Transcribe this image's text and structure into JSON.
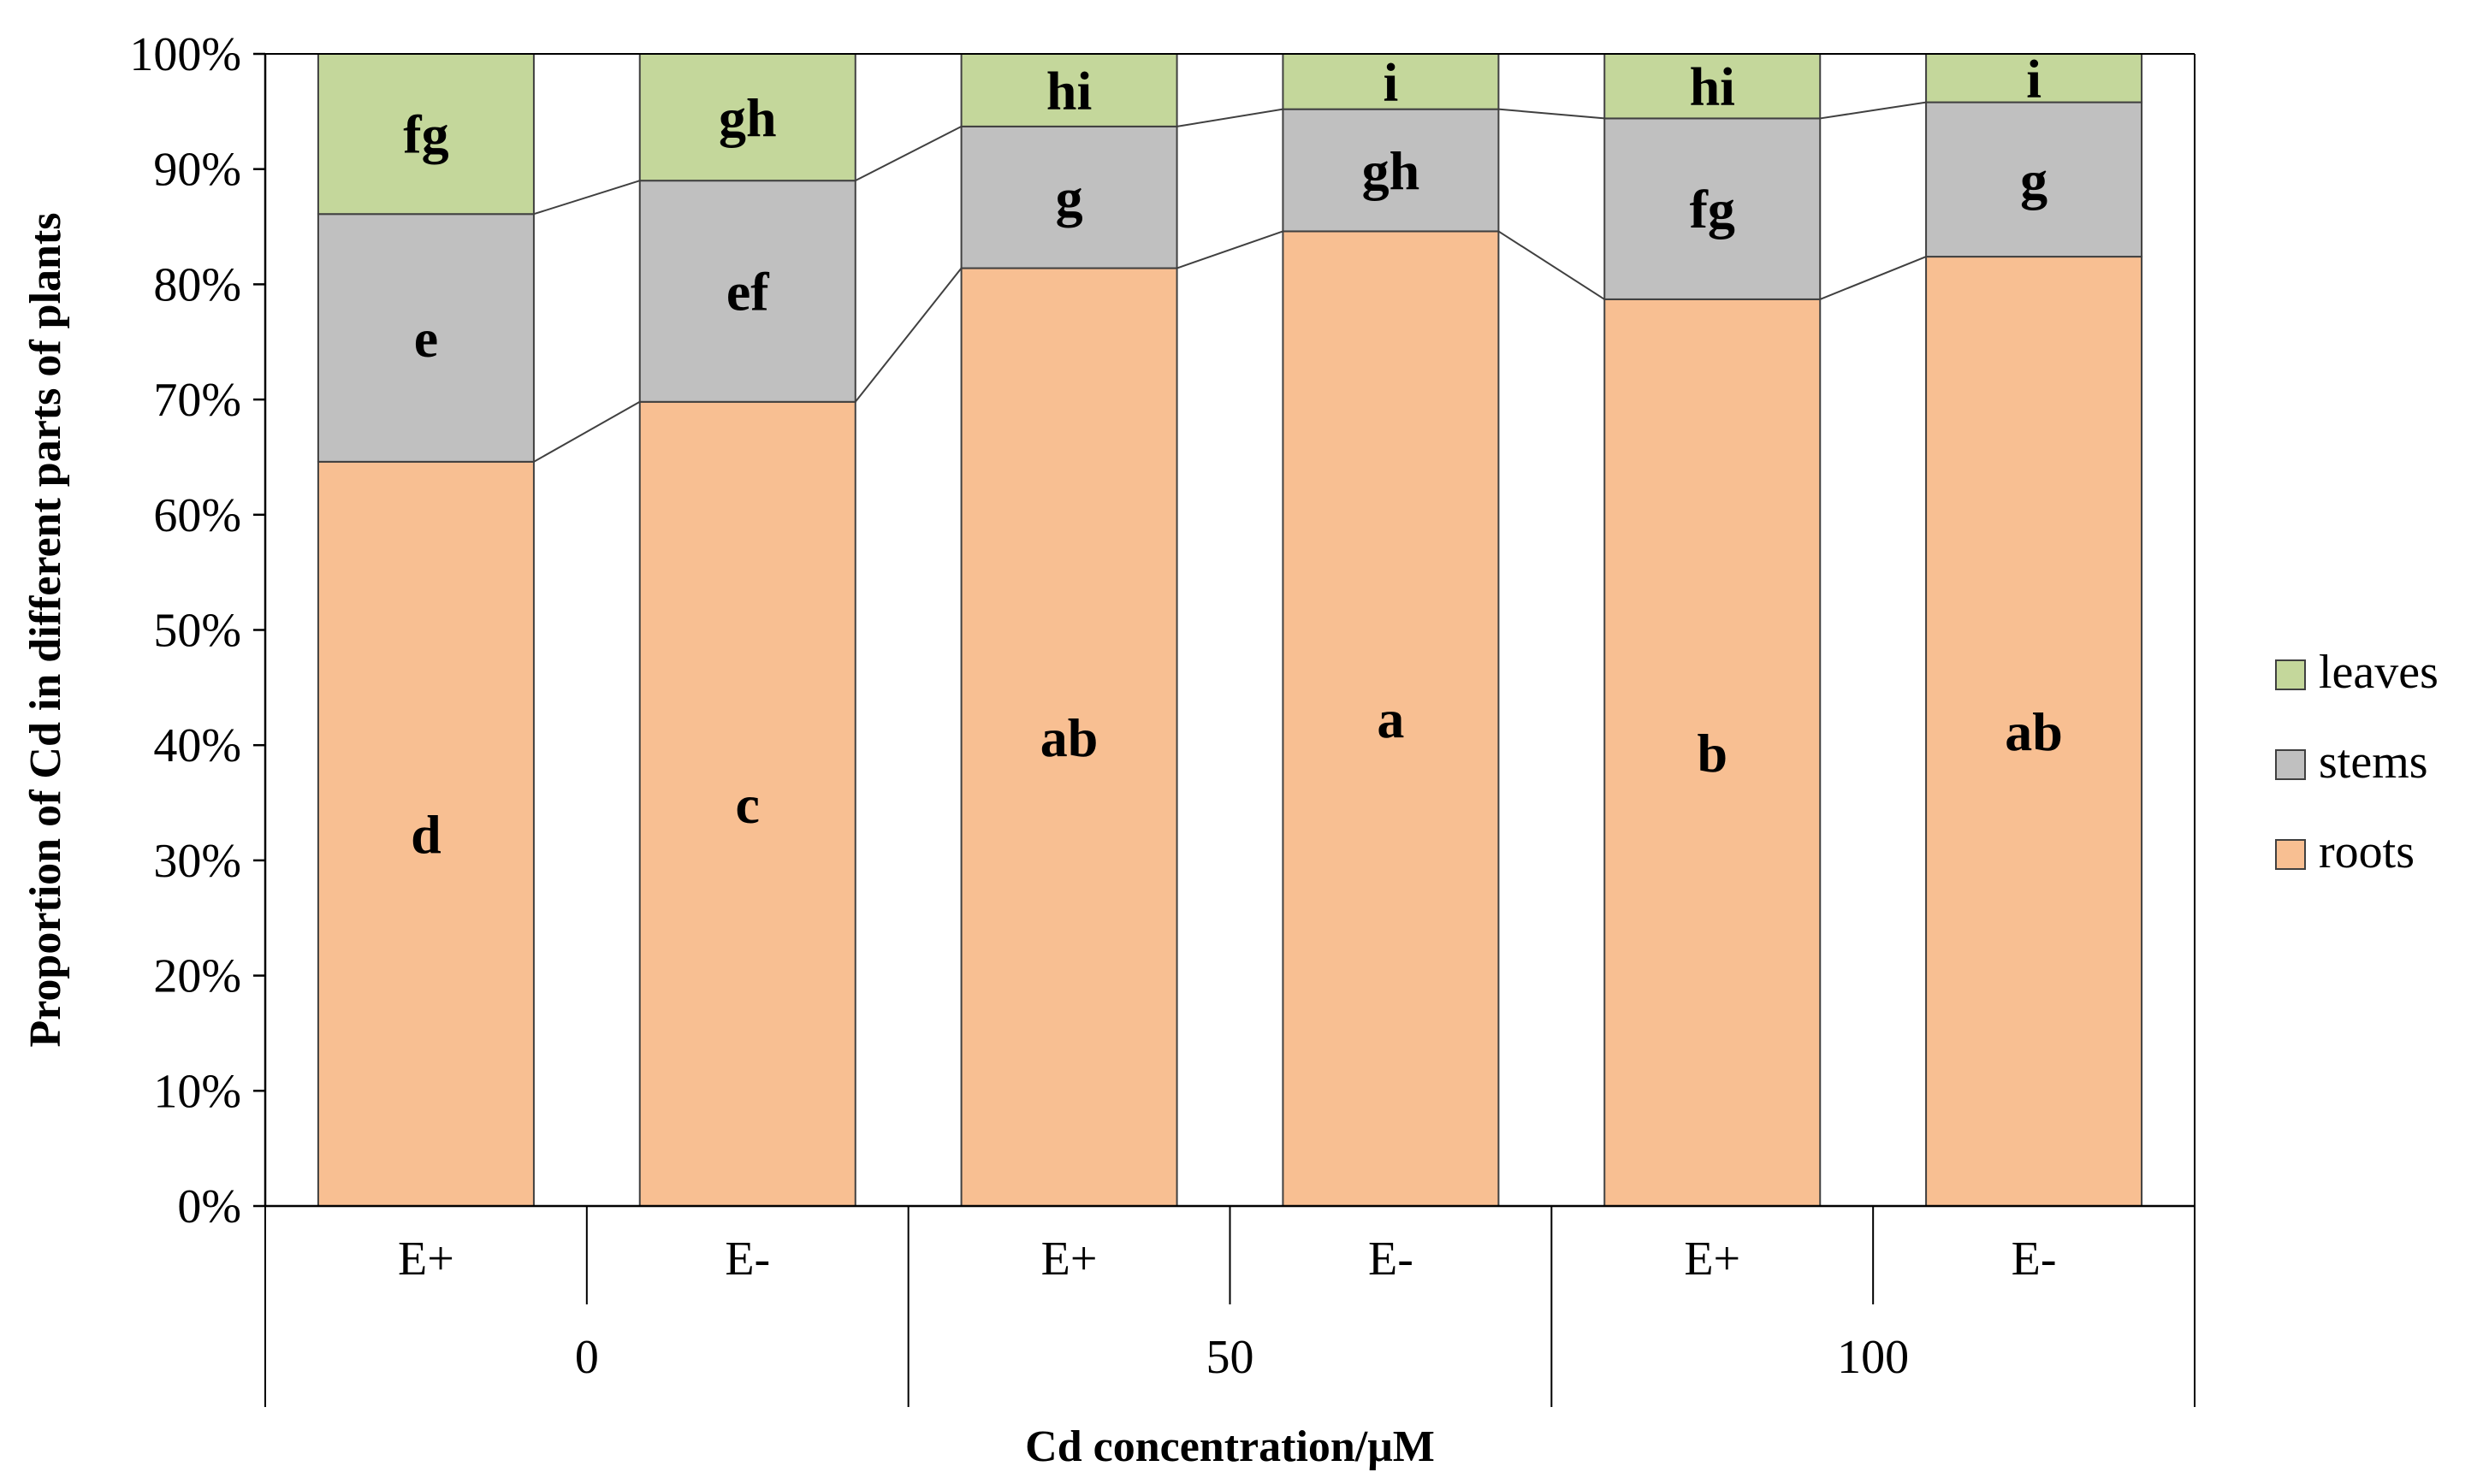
{
  "chart_data": {
    "type": "bar",
    "stacked": true,
    "percent": true,
    "categories": [
      "E+",
      "E-",
      "E+",
      "E-",
      "E+",
      "E-"
    ],
    "groups": [
      {
        "label": "0",
        "categories": [
          0,
          1
        ]
      },
      {
        "label": "50",
        "categories": [
          2,
          3
        ]
      },
      {
        "label": "100",
        "categories": [
          4,
          5
        ]
      }
    ],
    "series": [
      {
        "name": "roots",
        "color": "#F8BF92",
        "values": [
          64.6,
          69.8,
          81.4,
          84.6,
          78.7,
          82.4
        ],
        "labels": [
          "d",
          "c",
          "ab",
          "a",
          "b",
          "ab"
        ]
      },
      {
        "name": "stems",
        "color": "#C0C0C0",
        "values": [
          21.5,
          19.2,
          12.3,
          10.6,
          15.7,
          13.4
        ],
        "labels": [
          "e",
          "ef",
          "g",
          "gh",
          "fg",
          "g"
        ]
      },
      {
        "name": "leaves",
        "color": "#C4D79B",
        "values": [
          13.9,
          11.0,
          6.3,
          4.8,
          5.6,
          4.2
        ],
        "labels": [
          "fg",
          "gh",
          "hi",
          "i",
          "hi",
          "i"
        ]
      }
    ],
    "xlabel": "Cd concentration/μM",
    "ylabel": "Proportion of Cd in different parts of plants",
    "ylim": [
      0,
      100
    ],
    "yticks": [
      "0%",
      "10%",
      "20%",
      "30%",
      "40%",
      "50%",
      "60%",
      "70%",
      "80%",
      "90%",
      "100%"
    ],
    "series_lines": true,
    "grid": false,
    "legend_position": "right"
  }
}
